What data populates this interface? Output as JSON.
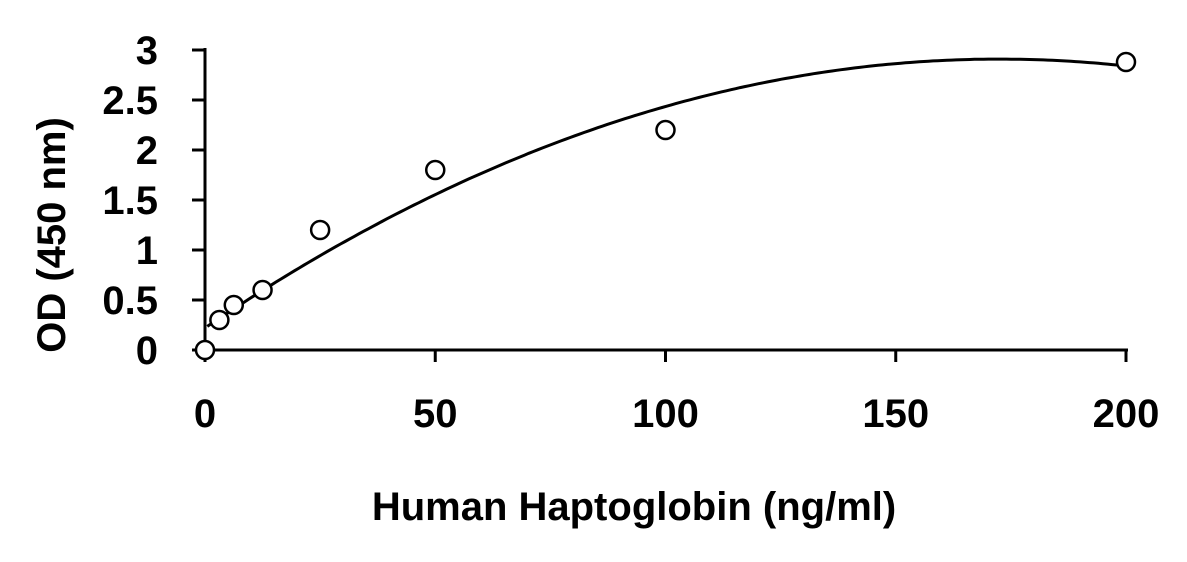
{
  "chart_data": {
    "type": "scatter",
    "title": "",
    "xlabel": "Human Haptoglobin (ng/ml)",
    "ylabel": "OD (450 nm)",
    "xlim": [
      0,
      200
    ],
    "ylim": [
      0,
      3
    ],
    "x_ticks": [
      "0",
      "50",
      "100",
      "150",
      "200"
    ],
    "y_ticks": [
      "0",
      "0.5",
      "1",
      "1.5",
      "2",
      "2.5",
      "3"
    ],
    "grid": false,
    "legend": "none",
    "series": [
      {
        "x": [
          0,
          3.125,
          6.25,
          12.5,
          25,
          50,
          100,
          200
        ],
        "y": [
          0,
          0.3,
          0.45,
          0.6,
          1.2,
          1.8,
          2.2,
          2.88
        ],
        "marker": "open-circle",
        "color": "#000000"
      }
    ],
    "trendline": {
      "type": "polynomial-2",
      "coefficients": [
        0.22,
        0.0312,
        -9.05e-05
      ],
      "color": "#000000"
    }
  }
}
